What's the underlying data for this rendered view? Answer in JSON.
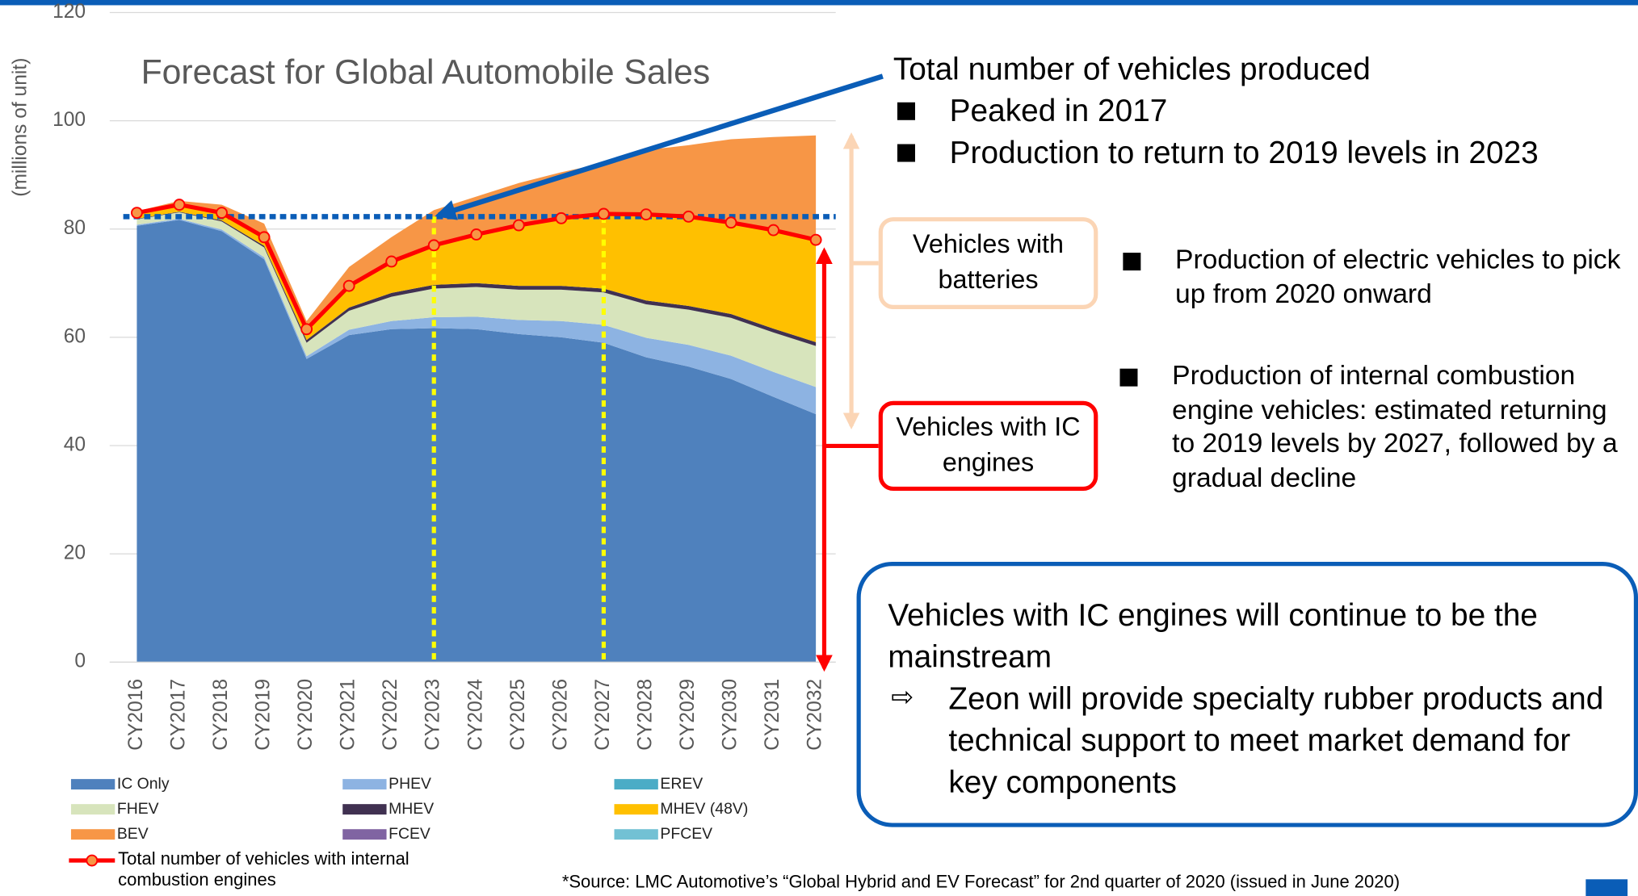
{
  "chart_data": {
    "type": "stacked_area",
    "title": "Forecast for Global Automobile Sales",
    "y_label": "(millions of unit)",
    "categories": [
      "CY2016",
      "CY2017",
      "CY2018",
      "CY2019",
      "CY2020",
      "CY2021",
      "CY2022",
      "CY2023",
      "CY2024",
      "CY2025",
      "CY2026",
      "CY2027",
      "CY2028",
      "CY2029",
      "CY2030",
      "CY2031",
      "CY2032"
    ],
    "ylim": [
      0,
      120
    ],
    "yticks": [
      0,
      20,
      40,
      60,
      80,
      100,
      120
    ],
    "grid": true,
    "series": [
      {
        "name": "IC Only",
        "color": "#4f81bd",
        "values": [
          80.6,
          81.7,
          79.6,
          74.4,
          56,
          60.4,
          61.5,
          61.7,
          61.5,
          60.6,
          60,
          59,
          56.3,
          54.6,
          52.3,
          49,
          45.8
        ]
      },
      {
        "name": "PHEV",
        "color": "#8db3e2",
        "values": [
          0.2,
          0.2,
          0.3,
          0.4,
          0.5,
          1,
          1.5,
          2,
          2.3,
          2.6,
          3,
          3.3,
          3.6,
          4,
          4.3,
          4.6,
          5
        ]
      },
      {
        "name": "EREV",
        "color": "#4bacc6",
        "values": [
          0,
          0,
          0,
          0,
          0,
          0,
          0,
          0,
          0,
          0,
          0,
          0,
          0,
          0,
          0,
          0,
          0
        ]
      },
      {
        "name": "FHEV",
        "color": "#d7e4bc",
        "values": [
          1,
          1.2,
          1.5,
          1.8,
          2.5,
          3.5,
          4.5,
          5.3,
          5.5,
          5.6,
          5.8,
          6,
          6.2,
          6.5,
          7,
          7.3,
          7.6
        ]
      },
      {
        "name": "MHEV",
        "color": "#403151",
        "values": [
          0.1,
          0.1,
          0.2,
          0.3,
          0.5,
          0.6,
          0.7,
          0.7,
          0.7,
          0.7,
          0.7,
          0.7,
          0.7,
          0.7,
          0.7,
          0.7,
          0.7
        ]
      },
      {
        "name": "MHEV (48V)",
        "color": "#ffc000",
        "values": [
          1.1,
          1.3,
          1.4,
          1.6,
          2,
          4,
          5.8,
          7.3,
          9,
          11.2,
          12.5,
          13.5,
          16,
          16.5,
          17,
          18.2,
          18.5
        ]
      },
      {
        "name": "BEV",
        "color": "#f79646",
        "values": [
          0.3,
          0.7,
          1.5,
          2.5,
          1.5,
          3.5,
          4.5,
          6.5,
          7,
          7.8,
          8.5,
          9.7,
          11.8,
          13.2,
          15.3,
          17.2,
          19.7
        ]
      },
      {
        "name": "FCEV",
        "color": "#8064a2",
        "values": [
          0,
          0,
          0,
          0,
          0,
          0,
          0,
          0,
          0,
          0,
          0,
          0,
          0,
          0,
          0,
          0,
          0
        ]
      },
      {
        "name": "PFCEV",
        "color": "#72c1d4",
        "values": [
          0,
          0,
          0,
          0,
          0,
          0,
          0,
          0,
          0,
          0,
          0,
          0,
          0,
          0,
          0,
          0,
          0
        ]
      }
    ],
    "line_series": {
      "name": "Total number of vehicles with internal combustion engines",
      "color": "#ff0000",
      "marker_color": "#f79646",
      "values": [
        83,
        84.5,
        83,
        78.5,
        61.5,
        69.5,
        74,
        77,
        79,
        80.7,
        82,
        82.8,
        82.7,
        82.3,
        81.2,
        79.8,
        78
      ]
    },
    "reference_line": {
      "value": 82.3,
      "color": "#0a5db7"
    },
    "vlines": {
      "categories": [
        "CY2023",
        "CY2027"
      ],
      "color": "#ffff00"
    }
  },
  "annotations": {
    "total": {
      "heading": "Total number of vehicles produced",
      "bullets": [
        "Peaked in 2017",
        "Production to return to 2019 levels in 2023"
      ]
    },
    "batteries_label": "Vehicles with batteries",
    "ic_label": "Vehicles with IC engines",
    "ev_note": "Production of electric vehicles to pick up from 2020 onward",
    "ic_note": "Production of internal combustion engine vehicles: estimated returning to 2019 levels by 2027, followed by a gradual decline",
    "conclusion": {
      "heading": "Vehicles with IC engines will continue to be the mainstream",
      "point": "Zeon will provide specialty rubber products and technical support to meet market demand for key components"
    },
    "source": "*Source: LMC Automotive’s “Global Hybrid and EV Forecast” for 2nd quarter of 2020 (issued in June 2020)"
  }
}
